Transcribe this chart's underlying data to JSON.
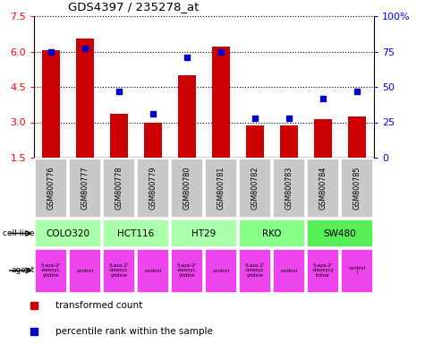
{
  "title": "GDS4397 / 235278_at",
  "samples": [
    "GSM800776",
    "GSM800777",
    "GSM800778",
    "GSM800779",
    "GSM800780",
    "GSM800781",
    "GSM800782",
    "GSM800783",
    "GSM800784",
    "GSM800785"
  ],
  "red_bars": [
    6.07,
    6.55,
    3.35,
    3.0,
    5.0,
    6.2,
    2.85,
    2.85,
    3.15,
    3.25
  ],
  "blue_pct": [
    75,
    77,
    47,
    31,
    71,
    75,
    28,
    28,
    42,
    47
  ],
  "ylim_left": [
    1.5,
    7.5
  ],
  "ylim_right": [
    0,
    100
  ],
  "yticks_left": [
    1.5,
    3.0,
    4.5,
    6.0,
    7.5
  ],
  "yticks_right": [
    0,
    25,
    50,
    75,
    100
  ],
  "ytick_labels_right": [
    "0",
    "25",
    "50",
    "75",
    "100%"
  ],
  "cell_lines": [
    {
      "name": "COLO320",
      "start": 0,
      "end": 2,
      "color": "#aaffaa"
    },
    {
      "name": "HCT116",
      "start": 2,
      "end": 4,
      "color": "#aaffaa"
    },
    {
      "name": "HT29",
      "start": 4,
      "end": 6,
      "color": "#aaffaa"
    },
    {
      "name": "RKO",
      "start": 6,
      "end": 8,
      "color": "#88ff88"
    },
    {
      "name": "SW480",
      "start": 8,
      "end": 10,
      "color": "#55ee55"
    }
  ],
  "agent_texts": [
    "5-aza-2'\n-deoxyc\nytidine",
    "control",
    "5-aza-2'\n-deoxyc\nytidine",
    "control",
    "5-aza-2'\n-deoxyc\nytidine",
    "control",
    "5-aza-2'\n-deoxyc\nytidine",
    "control",
    "5-aza-2'\n-deoxycy\ntidine",
    "control\nl"
  ],
  "bar_color": "#cc0000",
  "dot_color": "#0000cc",
  "sample_bg": "#c8c8c8",
  "agent_color": "#ee44ee",
  "fig_bg": "#ffffff",
  "legend_red": "transformed count",
  "legend_blue": "percentile rank within the sample"
}
